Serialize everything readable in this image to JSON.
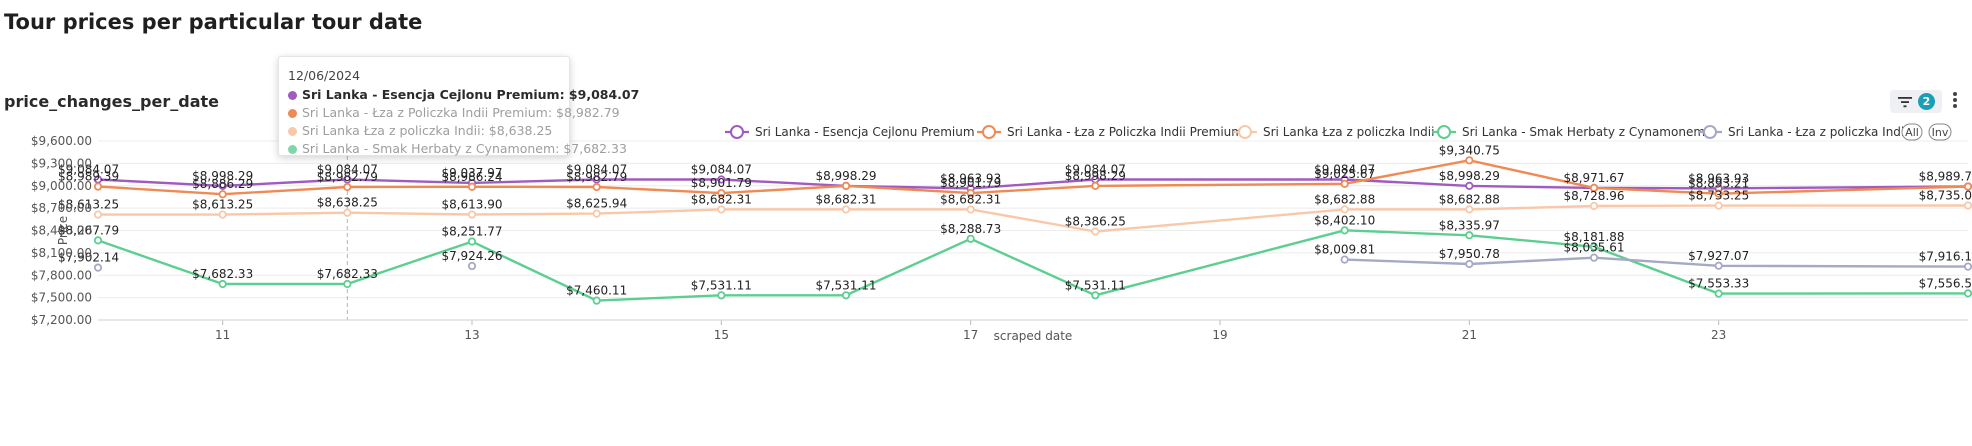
{
  "page": {
    "title": "Tour prices per particular tour date"
  },
  "panel": {
    "title": "price_changes_per_date",
    "filter_count": "2"
  },
  "legend": {
    "all_label": "All",
    "inv_label": "Inv"
  },
  "tooltip": {
    "date": "12/06/2024",
    "rows": [
      {
        "label": "Sri Lanka - Esencja Cejlonu Premium: $9,084.07",
        "color": "#a05bc0",
        "active": true
      },
      {
        "label": "Sri Lanka - Łza z Policzka Indii Premium: $8,982.79",
        "color": "#f08a55",
        "active": false
      },
      {
        "label": "Sri Lanka Łza z policzka Indii: $8,638.25",
        "color": "#f8c8a8",
        "active": false
      },
      {
        "label": "Sri Lanka - Smak Herbaty z Cynamonem: $7,682.33",
        "color": "#7fd6a8",
        "active": false
      }
    ]
  },
  "chart_data": {
    "type": "line",
    "title": "price_changes_per_date",
    "xlabel": "scraped date",
    "ylabel": "Price",
    "x_tick_labels": [
      "11",
      "13",
      "15",
      "17",
      "19",
      "21",
      "23"
    ],
    "x_ticks": [
      11,
      13,
      15,
      17,
      19,
      21,
      23
    ],
    "xlim": [
      10,
      25
    ],
    "ylim": [
      7200,
      9600
    ],
    "y_tick_labels": [
      "$7,200.00",
      "$7,500.00",
      "$7,800.00",
      "$8,100.00",
      "$8,400.00",
      "$8,700.00",
      "$9,000.00",
      "$9,300.00",
      "$9,600.00"
    ],
    "y_ticks": [
      7200,
      7500,
      7800,
      8100,
      8400,
      8700,
      9000,
      9300,
      9600
    ],
    "grid": "horizontal",
    "legend_position": "top-right",
    "hover_x": 12,
    "series": [
      {
        "name": "Sri Lanka - Esencja Cejlonu Premium",
        "color": "#a05bc0",
        "points": [
          {
            "x": 10,
            "y": 9084.07,
            "label": "$9,084.07"
          },
          {
            "x": 11,
            "y": 8998.29,
            "label": "$8,998.29"
          },
          {
            "x": 12,
            "y": 9084.07,
            "label": "$9,084.07"
          },
          {
            "x": 13,
            "y": 9037.97,
            "label": "$9,037.97"
          },
          {
            "x": 14,
            "y": 9084.07,
            "label": "$9,084.07"
          },
          {
            "x": 15,
            "y": 9084.07,
            "label": "$9,084.07"
          },
          {
            "x": 16,
            "y": 8998.29,
            "label": "$8,998.29"
          },
          {
            "x": 17,
            "y": 8963.93,
            "label": "$8,963.93"
          },
          {
            "x": 18,
            "y": 9084.07,
            "label": "$9,084.07"
          },
          {
            "x": 20,
            "y": 9084.07,
            "label": "$9,084.07"
          },
          {
            "x": 21,
            "y": 8998.29,
            "label": "$8,998.29"
          },
          {
            "x": 22,
            "y": 8971.67,
            "label": "$8,971.67"
          },
          {
            "x": 23,
            "y": 8963.93,
            "label": "$8,963.93"
          },
          {
            "x": 25,
            "y": 8989.7,
            "label": "$8,989.7"
          }
        ]
      },
      {
        "name": "Sri Lanka - Łza z Policzka Indii Premium",
        "color": "#f08a55",
        "points": [
          {
            "x": 10,
            "y": 8989.39,
            "label": "$8,989.39"
          },
          {
            "x": 11,
            "y": 8886.29,
            "label": "$8,886.29"
          },
          {
            "x": 12,
            "y": 8982.79,
            "label": "$8,982.79"
          },
          {
            "x": 13,
            "y": 8986.24,
            "label": "$8,986.24"
          },
          {
            "x": 14,
            "y": 8982.79,
            "label": "$8,982.79"
          },
          {
            "x": 15,
            "y": 8901.79,
            "label": "$8,901.79"
          },
          {
            "x": 16,
            "y": 8998.29,
            "label": ""
          },
          {
            "x": 17,
            "y": 8901.79,
            "label": "$8,901.79"
          },
          {
            "x": 18,
            "y": 8998.29,
            "label": "$8,998.29"
          },
          {
            "x": 20,
            "y": 9025.67,
            "label": "$9,025.67"
          },
          {
            "x": 21,
            "y": 9340.75,
            "label": "$9,340.75"
          },
          {
            "x": 22,
            "y": 8971.67,
            "label": ""
          },
          {
            "x": 23,
            "y": 8893.21,
            "label": "$8,893.21"
          },
          {
            "x": 25,
            "y": 8989.7,
            "label": ""
          }
        ]
      },
      {
        "name": "Sri Lanka Łza z policzka Indii",
        "color": "#f8c8a8",
        "points": [
          {
            "x": 10,
            "y": 8613.25,
            "label": "$8,613.25"
          },
          {
            "x": 11,
            "y": 8613.25,
            "label": "$8,613.25"
          },
          {
            "x": 12,
            "y": 8638.25,
            "label": "$8,638.25"
          },
          {
            "x": 13,
            "y": 8613.9,
            "label": "$8,613.90"
          },
          {
            "x": 14,
            "y": 8625.94,
            "label": "$8,625.94"
          },
          {
            "x": 15,
            "y": 8682.31,
            "label": "$8,682.31"
          },
          {
            "x": 16,
            "y": 8682.31,
            "label": "$8,682.31"
          },
          {
            "x": 17,
            "y": 8682.31,
            "label": "$8,682.31"
          },
          {
            "x": 18,
            "y": 8386.25,
            "label": "$8,386.25"
          },
          {
            "x": 20,
            "y": 8682.88,
            "label": "$8,682.88"
          },
          {
            "x": 21,
            "y": 8682.88,
            "label": "$8,682.88"
          },
          {
            "x": 22,
            "y": 8728.96,
            "label": "$8,728.96"
          },
          {
            "x": 23,
            "y": 8733.25,
            "label": "$8,733.25"
          },
          {
            "x": 25,
            "y": 8735.0,
            "label": "$8,735.0"
          }
        ]
      },
      {
        "name": "Sri Lanka - Smak Herbaty z Cynamonem",
        "color": "#5ccf90",
        "points": [
          {
            "x": 10,
            "y": 8267.79,
            "label": "$8,267.79"
          },
          {
            "x": 11,
            "y": 7682.33,
            "label": "$7,682.33"
          },
          {
            "x": 12,
            "y": 7682.33,
            "label": "$7,682.33"
          },
          {
            "x": 13,
            "y": 8251.77,
            "label": "$8,251.77"
          },
          {
            "x": 14,
            "y": 7460.11,
            "label": "$7,460.11"
          },
          {
            "x": 15,
            "y": 7531.11,
            "label": "$7,531.11"
          },
          {
            "x": 16,
            "y": 7531.11,
            "label": "$7,531.11"
          },
          {
            "x": 17,
            "y": 8288.73,
            "label": "$8,288.73"
          },
          {
            "x": 18,
            "y": 7531.11,
            "label": "$7,531.11"
          },
          {
            "x": 20,
            "y": 8402.1,
            "label": "$8,402.10"
          },
          {
            "x": 21,
            "y": 8335.97,
            "label": "$8,335.97"
          },
          {
            "x": 22,
            "y": 8181.88,
            "label": "$8,181.88"
          },
          {
            "x": 23,
            "y": 7553.33,
            "label": "$7,553.33"
          },
          {
            "x": 25,
            "y": 7556.5,
            "label": "$7,556.5"
          }
        ]
      },
      {
        "name": "Sri Lanka - Łza z policzka Indii",
        "color": "#a6a9c6",
        "points": [
          {
            "x": 10,
            "y": 7902.14,
            "label": "$7,902.14"
          },
          {
            "x": 13,
            "y": 7924.26,
            "label": "$7,924.26"
          },
          {
            "x": 20,
            "y": 8009.81,
            "label": "$8,009.81"
          },
          {
            "x": 21,
            "y": 7950.78,
            "label": "$7,950.78"
          },
          {
            "x": 22,
            "y": 8035.61,
            "label": "$8,035.61"
          },
          {
            "x": 23,
            "y": 7927.07,
            "label": "$7,927.07"
          },
          {
            "x": 25,
            "y": 7916.1,
            "label": "$7,916.1"
          }
        ],
        "segments": [
          [
            0
          ],
          [
            1
          ],
          [
            2,
            3,
            4,
            5,
            6
          ]
        ]
      }
    ]
  }
}
